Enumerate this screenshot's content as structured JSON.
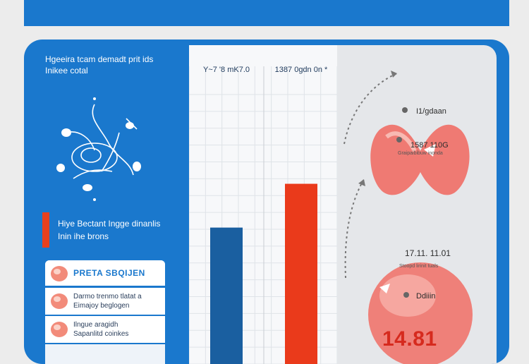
{
  "page": {
    "bg_color": "#ececec",
    "accent_blue": "#1a78cd",
    "accent_red": "#e8401e"
  },
  "left": {
    "title_line1": "Hgeeira tcam demadt prit ids",
    "title_line2": "Inikee cotal",
    "note_line1": "Hiye Bectant Ingge dinanlis",
    "note_line2": "Inin ihe brons"
  },
  "list": {
    "header": "PRETA SBQIJEN",
    "rows": [
      {
        "line1": "Darmo trenmo tlatat a",
        "line2": "Eimajoy beglogen"
      },
      {
        "line1": "Ilngue aragidh",
        "line2": "Sapanlitd coinkes"
      }
    ]
  },
  "chart_data": {
    "type": "bar",
    "categories": [
      "Y~7 '8 mK7.0",
      "1387 0gdn 0n *"
    ],
    "values": [
      4.05,
      5.35
    ],
    "colors": [
      "#1a5fa0",
      "#ea3a1b"
    ],
    "ylim": [
      0,
      8
    ]
  },
  "right": {
    "label1": "I1/gdaan",
    "label2": "1587 110G",
    "sub2": "Graipaibibuw inonda",
    "label3": "17.11. 11.01",
    "sub3": "Stoopd lirinit tuals",
    "label4": "Ddiiin",
    "big_value": "14.81"
  }
}
